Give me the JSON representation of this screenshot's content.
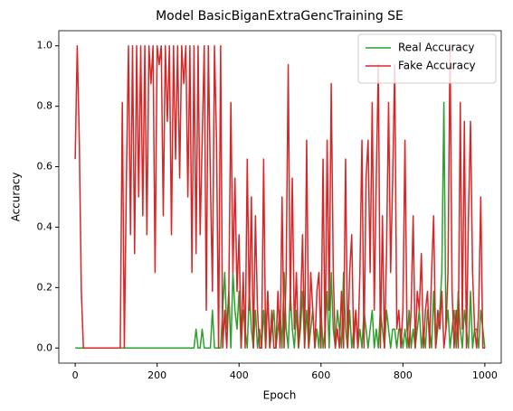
{
  "chart_data": {
    "type": "line",
    "title": "Model BasicBiganExtraGencTraining SE",
    "xlabel": "Epoch",
    "ylabel": "Accuracy",
    "xlim": [
      -40,
      1040
    ],
    "ylim": [
      -0.05,
      1.05
    ],
    "xticks": [
      0,
      200,
      400,
      600,
      800,
      1000
    ],
    "yticks": [
      {
        "value": 0,
        "label": "0.0"
      },
      0.2,
      0.4,
      0.6,
      0.8,
      {
        "value": 1,
        "label": "1.0"
      }
    ],
    "grid": false,
    "legend": "upper right",
    "x": [
      0,
      5,
      10,
      15,
      20,
      25,
      30,
      35,
      40,
      45,
      50,
      55,
      60,
      65,
      70,
      75,
      80,
      85,
      90,
      95,
      100,
      105,
      110,
      115,
      120,
      125,
      130,
      135,
      140,
      145,
      150,
      155,
      160,
      165,
      170,
      175,
      180,
      185,
      190,
      195,
      200,
      205,
      210,
      215,
      220,
      225,
      230,
      235,
      240,
      245,
      250,
      255,
      260,
      265,
      270,
      275,
      280,
      285,
      290,
      295,
      300,
      305,
      310,
      315,
      320,
      325,
      330,
      335,
      340,
      345,
      350,
      355,
      360,
      365,
      370,
      375,
      380,
      385,
      390,
      395,
      400,
      405,
      410,
      415,
      420,
      425,
      430,
      435,
      440,
      445,
      450,
      455,
      460,
      465,
      470,
      475,
      480,
      485,
      490,
      495,
      500,
      505,
      510,
      515,
      520,
      525,
      530,
      535,
      540,
      545,
      550,
      555,
      560,
      565,
      570,
      575,
      580,
      585,
      590,
      595,
      600,
      605,
      610,
      615,
      620,
      625,
      630,
      635,
      640,
      645,
      650,
      655,
      660,
      665,
      670,
      675,
      680,
      685,
      690,
      695,
      700,
      705,
      710,
      715,
      720,
      725,
      730,
      735,
      740,
      745,
      750,
      755,
      760,
      765,
      770,
      775,
      780,
      785,
      790,
      795,
      800,
      805,
      810,
      815,
      820,
      825,
      830,
      835,
      840,
      845,
      850,
      855,
      860,
      865,
      870,
      875,
      880,
      885,
      890,
      895,
      900,
      905,
      910,
      915,
      920,
      925,
      930,
      935,
      940,
      945,
      950,
      955,
      960,
      965,
      970,
      975,
      980,
      985,
      990,
      995,
      1000
    ],
    "series": [
      {
        "name": "Real Accuracy",
        "color": "#2ca02c",
        "values": [
          0,
          0,
          0,
          0,
          0,
          0,
          0,
          0,
          0,
          0,
          0,
          0,
          0,
          0,
          0,
          0,
          0,
          0,
          0,
          0,
          0,
          0,
          0,
          0,
          0,
          0,
          0,
          0,
          0,
          0,
          0,
          0,
          0,
          0,
          0,
          0,
          0,
          0,
          0,
          0,
          0,
          0,
          0,
          0,
          0,
          0,
          0,
          0,
          0,
          0,
          0,
          0,
          0,
          0,
          0,
          0,
          0,
          0,
          0,
          0.0625,
          0,
          0,
          0.0625,
          0,
          0,
          0,
          0,
          0.125,
          0,
          0,
          0,
          0,
          0.125,
          0.25,
          0.0625,
          0.1875,
          0,
          0.25,
          0.125,
          0.0625,
          0.1875,
          0,
          0.125,
          0.0625,
          0,
          0.1875,
          0.0625,
          0,
          0.125,
          0,
          0.0625,
          0,
          0.125,
          0,
          0.1875,
          0,
          0.0625,
          0.125,
          0,
          0.0625,
          0.125,
          0,
          0.25,
          0.0625,
          0,
          0.1875,
          0.0625,
          0,
          0.125,
          0,
          0.0625,
          0.1875,
          0,
          0.125,
          0,
          0.0625,
          0.125,
          0,
          0.0625,
          0,
          0.125,
          0,
          0.0625,
          0.1875,
          0,
          0.25,
          0.0625,
          0,
          0.125,
          0.0625,
          0,
          0.25,
          0.0625,
          0,
          0.125,
          0,
          0.0625,
          0.125,
          0,
          0.0625,
          0,
          0.125,
          0.0625,
          0,
          0.0625,
          0.125,
          0,
          0.0625,
          0,
          0.125,
          0.0625,
          0,
          0.125,
          0.0625,
          0,
          0.0625,
          0.0625,
          0,
          0.0625,
          0.0625,
          0,
          0.0625,
          0,
          0.125,
          0,
          0.0625,
          0,
          0.0625,
          0.125,
          0,
          0.0625,
          0,
          0.125,
          0.0625,
          0,
          0.1875,
          0,
          0.0625,
          0.125,
          0.25,
          0.8125,
          0.0625,
          0.125,
          0,
          0.0625,
          0.125,
          0,
          0.1875,
          0.0625,
          0,
          0.125,
          0.0625,
          0,
          0.1875,
          0,
          0.0625,
          0.0625,
          0,
          0.125,
          0.0625,
          0
        ]
      },
      {
        "name": "Fake Accuracy",
        "color": "#d62728",
        "values": [
          0.625,
          1,
          0.6875,
          0.1875,
          0,
          0,
          0,
          0,
          0,
          0,
          0,
          0,
          0,
          0,
          0,
          0,
          0,
          0,
          0,
          0,
          0,
          0,
          0,
          0.8125,
          0,
          0.5625,
          1,
          0.375,
          1,
          0.3125,
          1,
          0.5,
          1,
          0.4375,
          1,
          0.375,
          1,
          0.875,
          1,
          0.25,
          1,
          0.9375,
          1,
          0.4375,
          1,
          0.75,
          1,
          0.375,
          1,
          0.625,
          1,
          0.5625,
          1,
          0.875,
          1,
          0.5,
          1,
          0.25,
          1,
          0.3125,
          1,
          0.375,
          0.6875,
          1,
          0.125,
          1,
          0.5625,
          0.1875,
          1,
          0.6875,
          0,
          1,
          0,
          0.125,
          0,
          0.1875,
          0.8125,
          0.25,
          0.5625,
          0.1875,
          0.375,
          0,
          0.25,
          0,
          0.625,
          0.125,
          0.5,
          0,
          0.4375,
          0.125,
          0,
          0,
          0.625,
          0,
          0.1875,
          0,
          0.125,
          0,
          0,
          0.1875,
          0,
          0.5,
          0,
          0.25,
          0.9375,
          0.125,
          0.5625,
          0.0625,
          0.25,
          0,
          0.125,
          0.375,
          0,
          0.6875,
          0,
          0.25,
          0.125,
          0,
          0.1875,
          0.25,
          0,
          0.625,
          0,
          0.6875,
          0.125,
          0.875,
          0.25,
          0,
          0.0625,
          0,
          0.1875,
          0,
          0.625,
          0,
          0.25,
          0.375,
          0,
          0.125,
          0,
          0.25,
          0.6875,
          0,
          0.5625,
          0.6875,
          0.25,
          0.8125,
          0.125,
          0.5625,
          0.9375,
          0,
          0.4375,
          0,
          0.3125,
          0.8125,
          0.25,
          0.5625,
          0.9375,
          0.0625,
          0.125,
          0,
          0.125,
          0.6875,
          0.0625,
          0,
          0.125,
          0.4375,
          0,
          0.1875,
          0.125,
          0.3125,
          0,
          0.125,
          0.1875,
          0,
          0.25,
          0.4375,
          0,
          0.125,
          0.0625,
          0.1875,
          0,
          0.0625,
          0.25,
          1,
          0.1875,
          0,
          0.125,
          0,
          0.8125,
          0.0625,
          0.75,
          0,
          0.4375,
          0.75,
          0.25,
          0.0625,
          0,
          0.125,
          0.5,
          0,
          0
        ]
      }
    ]
  }
}
